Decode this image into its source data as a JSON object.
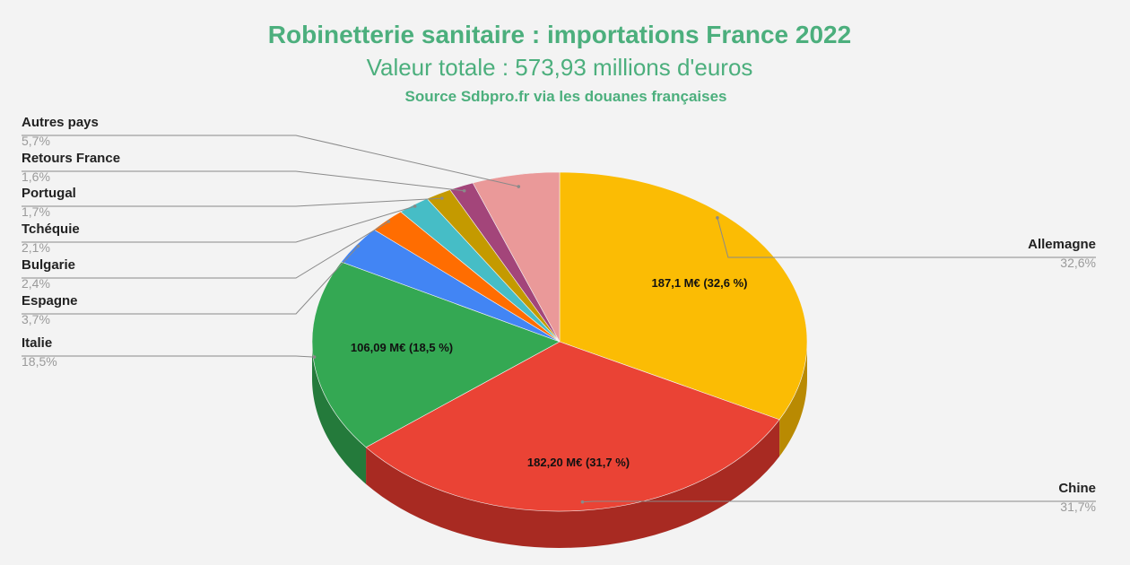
{
  "chart_data": {
    "type": "pie",
    "title": "Robinetterie sanitaire : importations France 2022",
    "subtitle": "Valeur totale : 573,93 millions d'euros",
    "source": "Source Sdbpro.fr via les douanes françaises",
    "title_color": "#4caf7d",
    "style": "3d",
    "slices": [
      {
        "name": "Allemagne",
        "value": 32.6,
        "percent_label": "32,6%",
        "color": "#fbbc04",
        "side_color": "#b98a02",
        "inner_label": "187,1 M€ (32,6 %)"
      },
      {
        "name": "Chine",
        "value": 31.7,
        "percent_label": "31,7%",
        "color": "#ea4335",
        "side_color": "#a82a22",
        "inner_label": "182,20 M€ (31,7 %)"
      },
      {
        "name": "Italie",
        "value": 18.5,
        "percent_label": "18,5%",
        "color": "#34a853",
        "side_color": "#247a3b",
        "inner_label": "106,09 M€ (18,5 %)"
      },
      {
        "name": "Espagne",
        "value": 3.7,
        "percent_label": "3,7%",
        "color": "#4285f4",
        "side_color": "#2d5fb0",
        "inner_label": ""
      },
      {
        "name": "Bulgarie",
        "value": 2.4,
        "percent_label": "2,4%",
        "color": "#ff6d01",
        "side_color": "#b84f00",
        "inner_label": ""
      },
      {
        "name": "Tchéquie",
        "value": 2.1,
        "percent_label": "2,1%",
        "color": "#46bdc6",
        "side_color": "#318990",
        "inner_label": ""
      },
      {
        "name": "Portugal",
        "value": 1.7,
        "percent_label": "1,7%",
        "color": "#c49a00",
        "side_color": "#8c6e00",
        "inner_label": ""
      },
      {
        "name": "Retours France",
        "value": 1.6,
        "percent_label": "1,6%",
        "color": "#a3457a",
        "side_color": "#6f2f53",
        "inner_label": ""
      },
      {
        "name": "Autres pays",
        "value": 5.7,
        "percent_label": "5,7%",
        "color": "#ea9999",
        "side_color": "#b06f6f",
        "inner_label": ""
      }
    ]
  }
}
